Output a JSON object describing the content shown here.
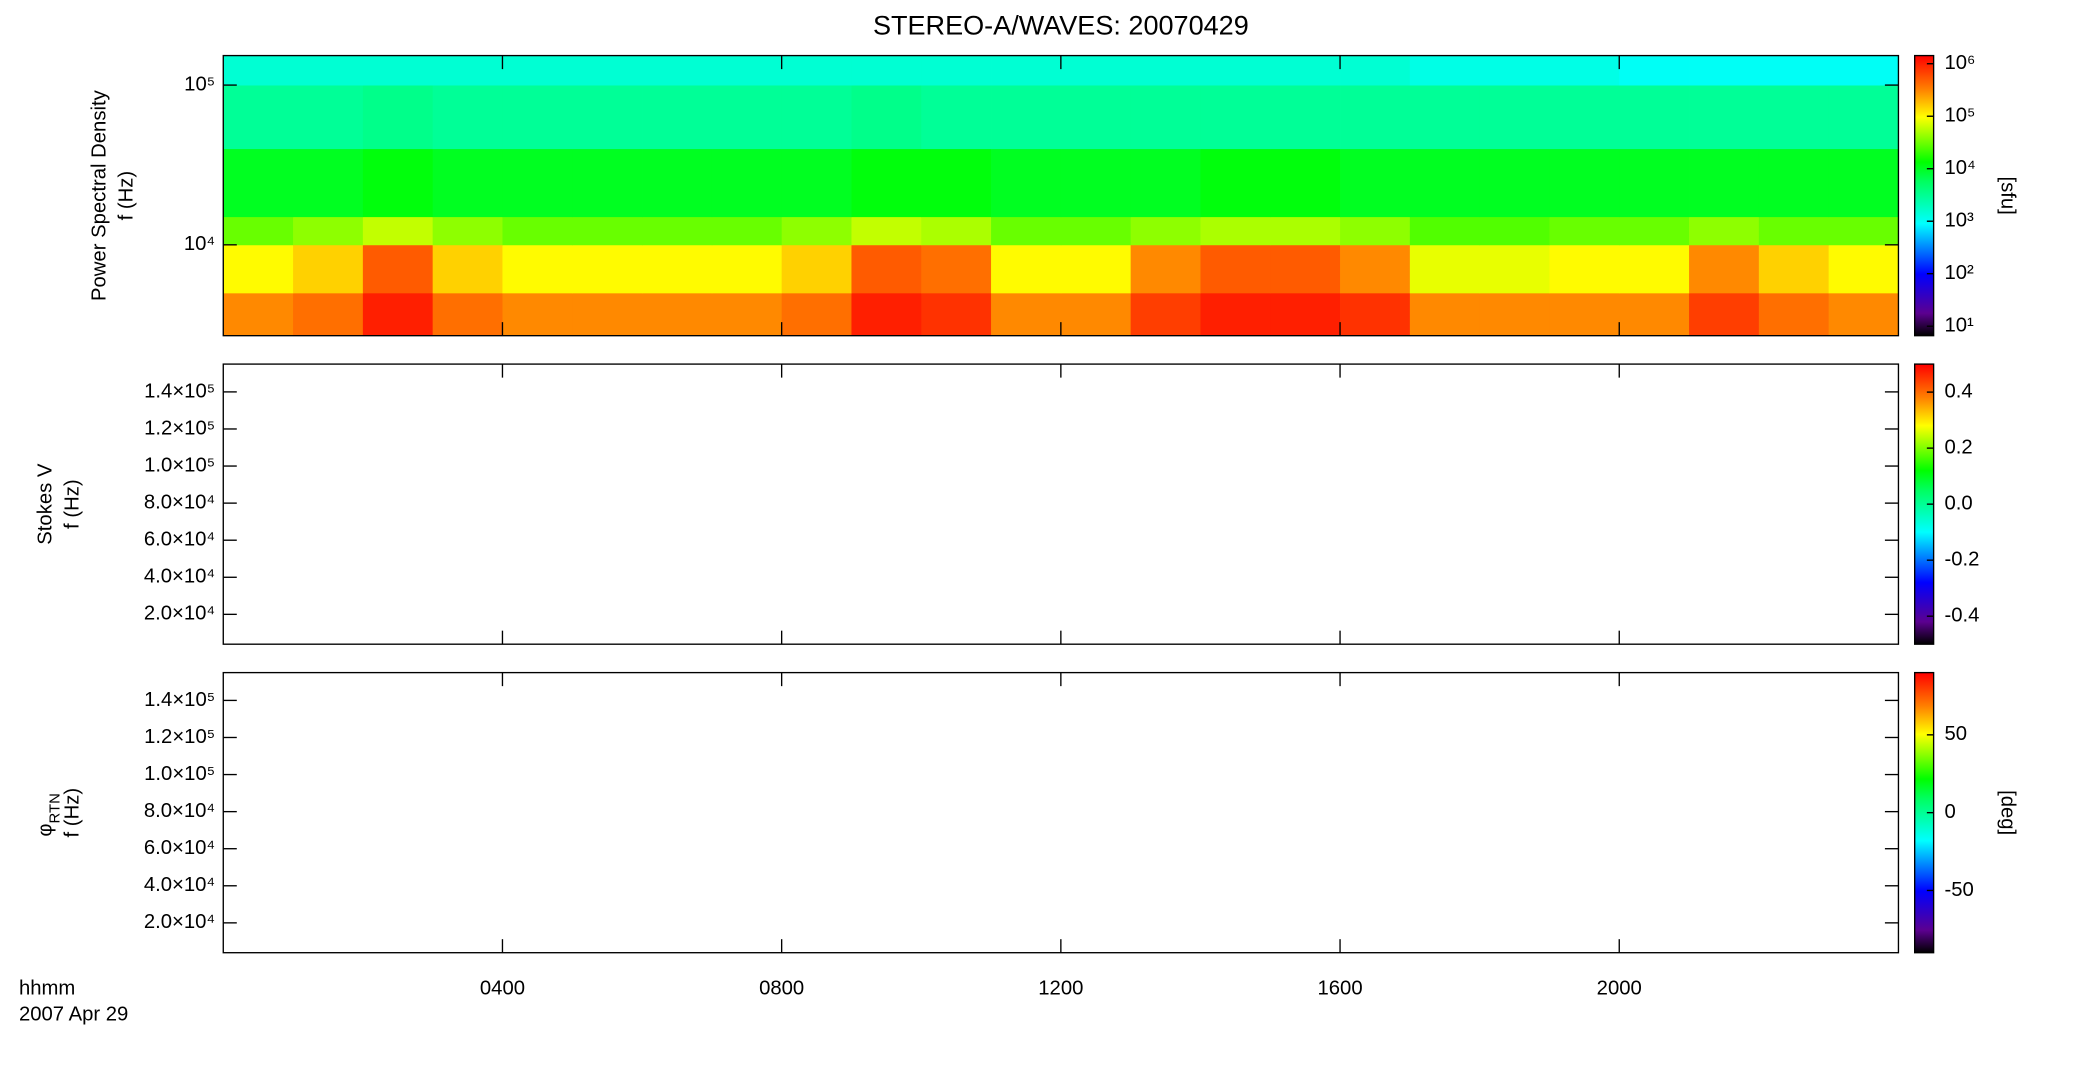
{
  "chart_data": [
    {
      "type": "heatmap",
      "title": "STEREO-A/WAVES: 20070429",
      "ylabel": [
        "Power Spectral Density",
        "f (Hz)"
      ],
      "ylog": true,
      "ylim": [
        2700,
        153000
      ],
      "yticks": [
        {
          "value": 10000,
          "label": "10⁴"
        },
        {
          "value": 100000,
          "label": "10⁵"
        }
      ],
      "xlim": [
        0,
        24
      ],
      "xticks": [
        4,
        8,
        12,
        16,
        20
      ],
      "x_bins": [
        0,
        1,
        2,
        3,
        4,
        5,
        6,
        7,
        8,
        9,
        10,
        11,
        12,
        13,
        14,
        15,
        16,
        17,
        18,
        19,
        20,
        21,
        22,
        23,
        24
      ],
      "y_bins": [
        2700,
        5000,
        10000,
        15000,
        40000,
        100000,
        153000
      ],
      "z": [
        [
          300000,
          400000,
          1000000,
          400000,
          300000,
          300000,
          300000,
          300000,
          400000,
          1000000,
          800000,
          300000,
          300000,
          700000,
          1000000,
          1000000,
          800000,
          300000,
          300000,
          300000,
          300000,
          700000,
          400000,
          300000
        ],
        [
          100000,
          150000,
          500000,
          150000,
          100000,
          100000,
          100000,
          100000,
          150000,
          500000,
          400000,
          100000,
          100000,
          300000,
          500000,
          500000,
          300000,
          80000,
          80000,
          100000,
          100000,
          300000,
          150000,
          100000
        ],
        [
          30000,
          40000,
          60000,
          40000,
          30000,
          30000,
          30000,
          30000,
          40000,
          60000,
          50000,
          30000,
          30000,
          40000,
          50000,
          50000,
          40000,
          25000,
          25000,
          30000,
          30000,
          40000,
          30000,
          30000
        ],
        [
          10000,
          10000,
          12000,
          10000,
          10000,
          10000,
          10000,
          10000,
          10000,
          12000,
          12000,
          10000,
          10000,
          10000,
          12000,
          12000,
          10000,
          10000,
          10000,
          10000,
          10000,
          10000,
          10000,
          10000
        ],
        [
          3000,
          3000,
          3500,
          3000,
          3000,
          3000,
          3000,
          3000,
          3000,
          3500,
          3000,
          3000,
          3000,
          3000,
          3000,
          3000,
          3000,
          3000,
          3000,
          3000,
          3000,
          3000,
          3000,
          3000
        ],
        [
          1500,
          1500,
          1500,
          1500,
          1500,
          1500,
          1500,
          1500,
          1500,
          1500,
          1500,
          1500,
          1500,
          1500,
          1500,
          1500,
          1500,
          1200,
          1200,
          1200,
          1000,
          1000,
          1000,
          1000
        ]
      ],
      "colorbar": {
        "log": true,
        "lim": [
          6.6,
          1430000
        ],
        "ticks": [
          {
            "value": 10,
            "label": "10¹"
          },
          {
            "value": 100,
            "label": "10²"
          },
          {
            "value": 1000,
            "label": "10³"
          },
          {
            "value": 10000,
            "label": "10⁴"
          },
          {
            "value": 100000,
            "label": "10⁵"
          },
          {
            "value": 1000000,
            "label": "10⁶"
          }
        ],
        "label": "[sfu]"
      }
    },
    {
      "type": "heatmap",
      "ylabel": [
        "Stokes V",
        "f (Hz)"
      ],
      "ylim": [
        3900,
        155000
      ],
      "yticks": [
        {
          "value": 20000,
          "label": "2.0×10⁴"
        },
        {
          "value": 40000,
          "label": "4.0×10⁴"
        },
        {
          "value": 60000,
          "label": "6.0×10⁴"
        },
        {
          "value": 80000,
          "label": "8.0×10⁴"
        },
        {
          "value": 100000,
          "label": "1.0×10⁵"
        },
        {
          "value": 120000,
          "label": "1.2×10⁵"
        },
        {
          "value": 140000,
          "label": "1.4×10⁵"
        }
      ],
      "xlim": [
        0,
        24
      ],
      "xticks": [
        4,
        8,
        12,
        16,
        20
      ],
      "colorbar": {
        "log": false,
        "lim": [
          -0.5,
          0.5
        ],
        "ticks": [
          -0.4,
          -0.2,
          {
            "value": 0,
            "label": "0.0"
          },
          0.2,
          0.4
        ]
      }
    },
    {
      "type": "heatmap",
      "ylabel": [
        "φ",
        "f (Hz)"
      ],
      "ylabel_subscript": "RTN",
      "ylim": [
        3900,
        155000
      ],
      "yticks": [
        {
          "value": 20000,
          "label": "2.0×10⁴"
        },
        {
          "value": 40000,
          "label": "4.0×10⁴"
        },
        {
          "value": 60000,
          "label": "6.0×10⁴"
        },
        {
          "value": 80000,
          "label": "8.0×10⁴"
        },
        {
          "value": 100000,
          "label": "1.0×10⁵"
        },
        {
          "value": 120000,
          "label": "1.2×10⁵"
        },
        {
          "value": 140000,
          "label": "1.4×10⁵"
        }
      ],
      "xlim": [
        0,
        24
      ],
      "xticks": [
        {
          "value": 4,
          "label": "0400"
        },
        {
          "value": 8,
          "label": "0800"
        },
        {
          "value": 12,
          "label": "1200"
        },
        {
          "value": 16,
          "label": "1600"
        },
        {
          "value": 20,
          "label": "2000"
        }
      ],
      "xlabel": "hhmm",
      "date_label": "2007 Apr 29",
      "colorbar": {
        "log": false,
        "lim": [
          -90,
          90
        ],
        "ticks": [
          -50,
          0,
          50
        ],
        "label": "[deg]"
      }
    }
  ]
}
